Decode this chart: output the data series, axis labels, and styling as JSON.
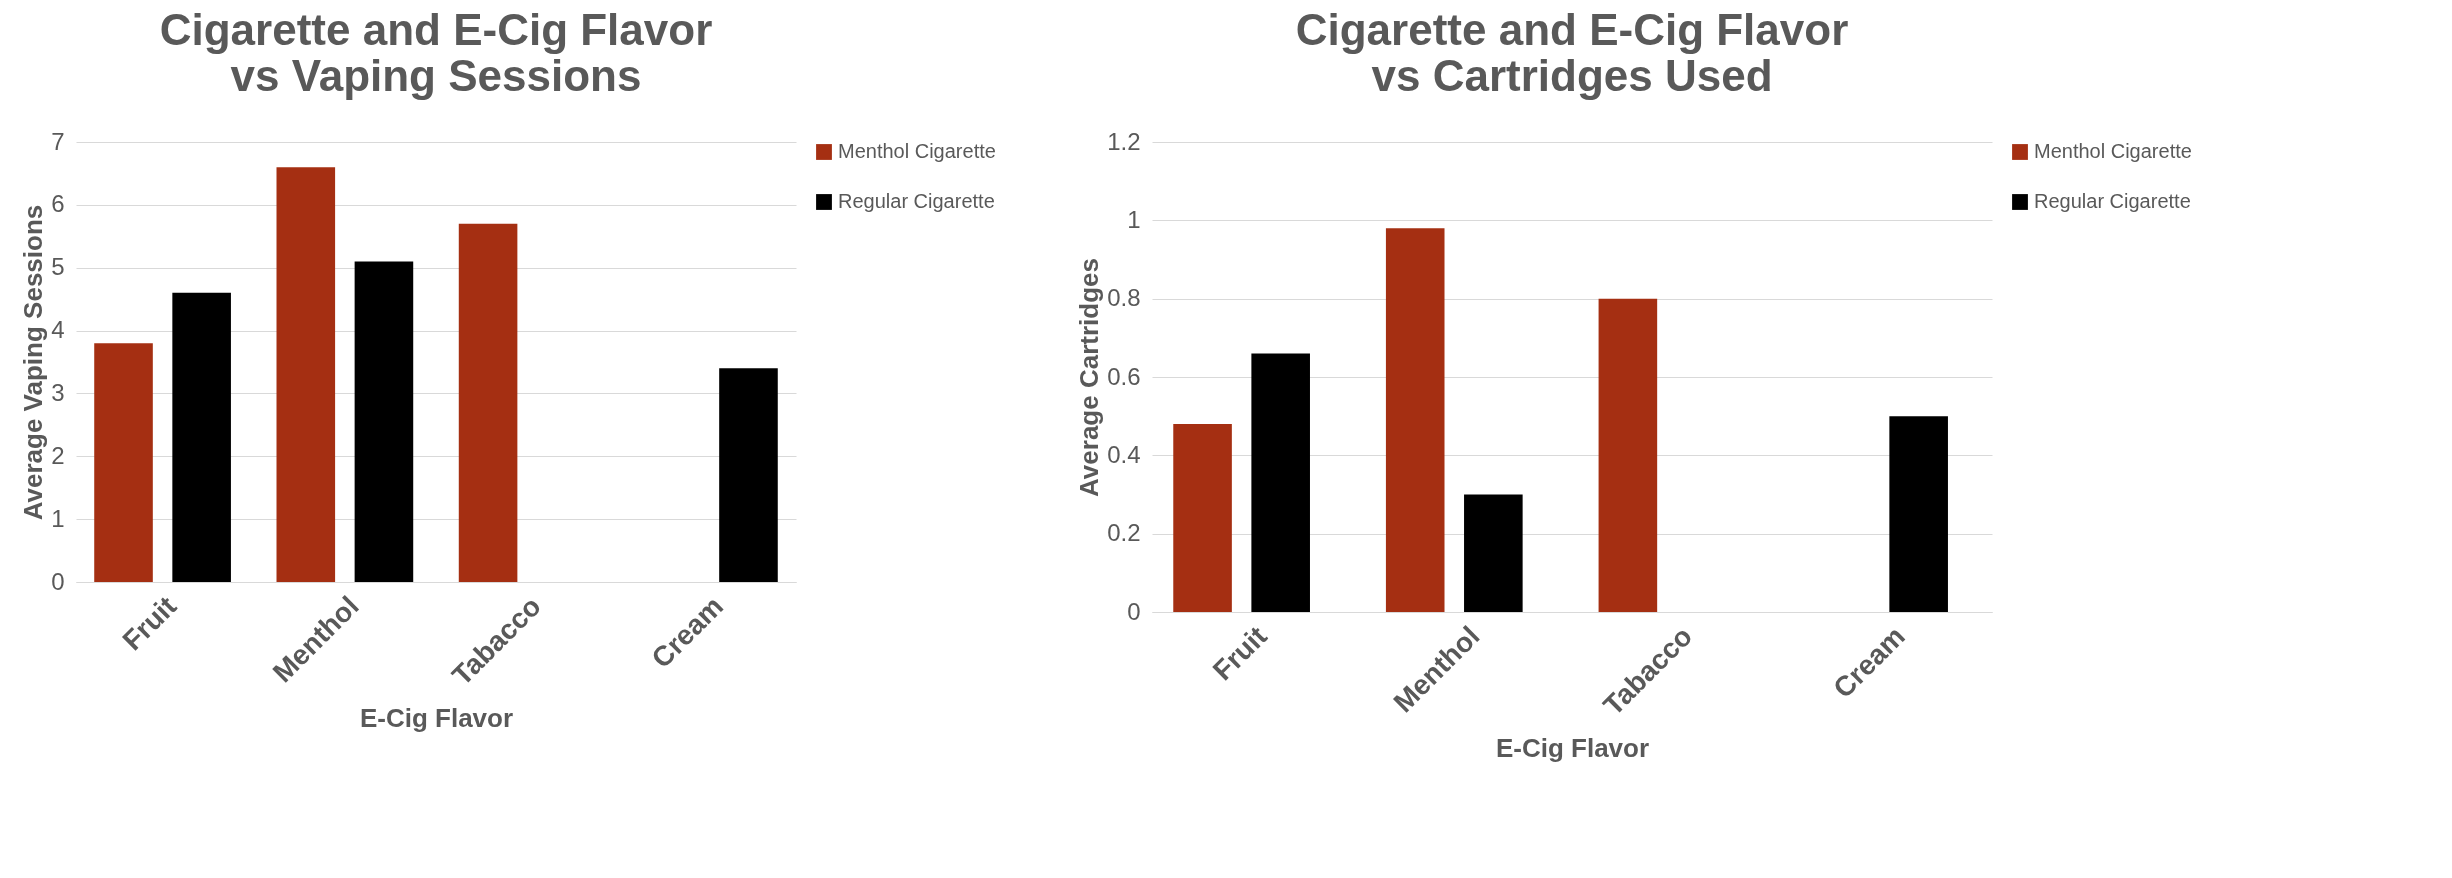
{
  "chart_data": [
    {
      "type": "bar",
      "title": [
        "Cigarette and E-Cig Flavor",
        "vs Vaping Sessions"
      ],
      "xlabel": "E-Cig Flavor",
      "ylabel": "Average Vaping Sessions",
      "categories": [
        "Fruit",
        "Menthol",
        "Tabacco",
        "Cream"
      ],
      "series": [
        {
          "name": "Menthol Cigarette",
          "color": "#a52f12",
          "values": [
            3.8,
            6.6,
            5.7,
            null
          ]
        },
        {
          "name": "Regular Cigarette",
          "color": "#000000",
          "values": [
            4.6,
            5.1,
            null,
            3.4
          ]
        }
      ],
      "ylim": [
        0,
        7
      ],
      "yticks": [
        0,
        1,
        2,
        3,
        4,
        5,
        6,
        7
      ],
      "grid": "y",
      "legend": "right"
    },
    {
      "type": "bar",
      "title": [
        "Cigarette and E-Cig Flavor",
        "vs Cartridges Used"
      ],
      "xlabel": "E-Cig Flavor",
      "ylabel": "Average Cartridges",
      "categories": [
        "Fruit",
        "Menthol",
        "Tabacco",
        "Cream"
      ],
      "series": [
        {
          "name": "Menthol Cigarette",
          "color": "#a52f12",
          "values": [
            0.48,
            0.98,
            0.8,
            null
          ]
        },
        {
          "name": "Regular Cigarette",
          "color": "#000000",
          "values": [
            0.66,
            0.3,
            null,
            0.5
          ]
        }
      ],
      "ylim": [
        0,
        1.2
      ],
      "yticks": [
        0,
        0.2,
        0.4,
        0.6,
        0.8,
        1,
        1.2
      ],
      "grid": "y",
      "legend": "right"
    }
  ]
}
